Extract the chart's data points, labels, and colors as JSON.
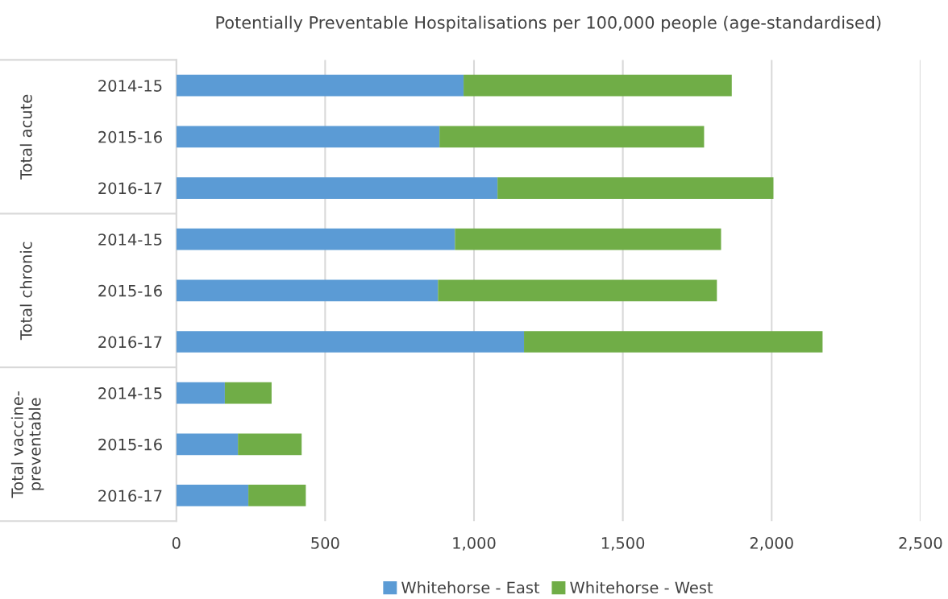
{
  "chart_data": {
    "type": "bar",
    "orientation": "horizontal",
    "stacked": true,
    "title": "Potentially Preventable Hospitalisations per 100,000 people (age-standardised)",
    "categories": [
      "2014-15",
      "2015-16",
      "2016-17",
      "2014-15",
      "2015-16",
      "2016-17",
      "2014-15",
      "2015-16",
      "2016-17"
    ],
    "series": [
      {
        "name": "Whitehorse - East",
        "color": "#5b9bd5",
        "values": [
          965,
          884,
          1079,
          936,
          879,
          1168,
          163,
          207,
          242
        ]
      },
      {
        "name": "Whitehorse - West",
        "color": "#70ad47",
        "values": [
          901,
          889,
          927,
          894,
          937,
          1003,
          157,
          214,
          193
        ]
      }
    ],
    "annotations": [
      "Total acute",
      "Total chronic",
      "Total vaccine-\npreventable"
    ],
    "xlim": [
      0,
      2500
    ],
    "xticks": [
      {
        "value": 0,
        "label": "0"
      },
      {
        "value": 500,
        "label": "500"
      },
      {
        "value": 1000,
        "label": "1,000"
      },
      {
        "value": 1500,
        "label": "1,500"
      },
      {
        "value": 2000,
        "label": "2,000"
      },
      {
        "value": 2500,
        "label": "2,500"
      }
    ],
    "grid": "x",
    "legend": "bottom"
  }
}
